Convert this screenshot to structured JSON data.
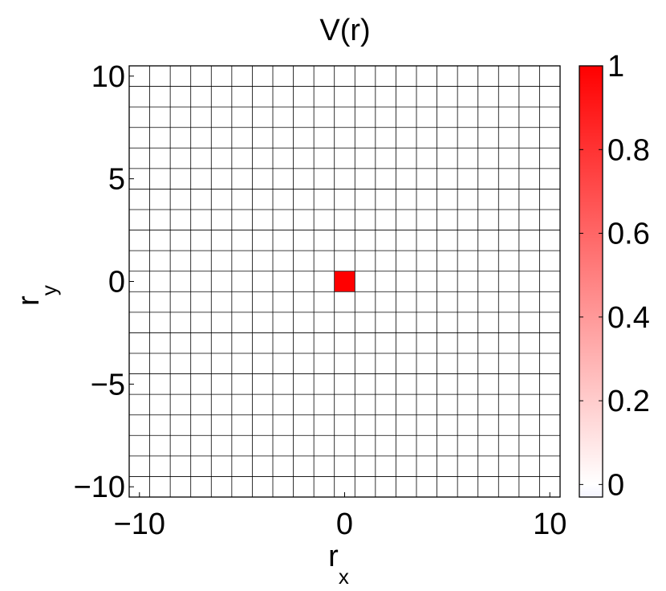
{
  "chart_data": {
    "type": "heatmap",
    "title": "V(r)",
    "xlabel": {
      "main": "r",
      "sub": "x"
    },
    "ylabel": {
      "main": "r",
      "sub": "y"
    },
    "x_range": [
      -10,
      10
    ],
    "y_range": [
      -10,
      10
    ],
    "x_ticks": [
      -10,
      0,
      10
    ],
    "x_tick_labels": [
      "−10",
      "0",
      "10"
    ],
    "y_ticks": [
      10,
      5,
      0,
      -5,
      -10
    ],
    "y_tick_labels": [
      "10",
      "5",
      "0",
      "−5",
      "−10"
    ],
    "grid": true,
    "cell_lines": true,
    "default_value": 0,
    "cells": [
      {
        "x": 0,
        "y": 0,
        "value": 1
      }
    ],
    "colorbar": {
      "range": [
        -0.03,
        1
      ],
      "ticks": [
        1,
        0.8,
        0.6,
        0.4,
        0.2,
        0
      ],
      "tick_labels": [
        "1",
        "0.8",
        "0.6",
        "0.4",
        "0.2",
        "0"
      ],
      "colors": {
        "low": "#f4f4ff",
        "zero": "#ffffff",
        "high": "#ff0000"
      }
    }
  }
}
